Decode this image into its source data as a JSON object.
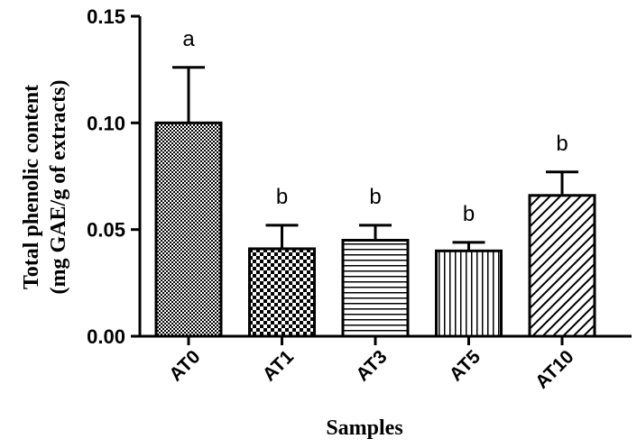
{
  "chart_data": {
    "type": "bar",
    "title": "",
    "xlabel": "Samples",
    "ylabel_lines": [
      "Total phenolic content",
      "(mg GAE/g of extracts)"
    ],
    "categories": [
      "AT0",
      "AT1",
      "AT3",
      "AT5",
      "AT10"
    ],
    "values": [
      0.1,
      0.041,
      0.045,
      0.04,
      0.066
    ],
    "errors": [
      0.026,
      0.011,
      0.007,
      0.004,
      0.011
    ],
    "significance": [
      "a",
      "b",
      "b",
      "b",
      "b"
    ],
    "patterns": [
      "checker-fine",
      "checker-coarse",
      "horizontal-lines",
      "vertical-lines",
      "diagonal-lines"
    ],
    "ylim": [
      0,
      0.15
    ],
    "yticks": [
      "0.00",
      "0.05",
      "0.10",
      "0.15"
    ],
    "ytick_values": [
      0,
      0.05,
      0.1,
      0.15
    ],
    "grid": false,
    "colors": {
      "stroke": "#000000",
      "fill": "#ffffff"
    }
  }
}
